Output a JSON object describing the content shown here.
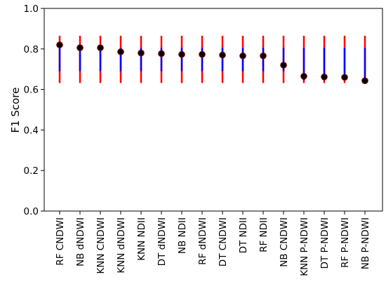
{
  "chart_data": {
    "type": "scatter",
    "title": "",
    "xlabel": "",
    "ylabel": "F1 Score",
    "ylim": [
      0.0,
      1.0
    ],
    "yticks": [
      0.0,
      0.2,
      0.4,
      0.6,
      0.8,
      1.0
    ],
    "ytick_labels": [
      "0.0",
      "0.2",
      "0.4",
      "0.6",
      "0.8",
      "1.0"
    ],
    "grid": false,
    "categories": [
      "RF CNDWI",
      "NB dNDWI",
      "KNN CNDWI",
      "KNN dNDWI",
      "KNN NDII",
      "DT dNDWI",
      "NB NDII",
      "RF dNDWI",
      "DT CNDWI",
      "DT NDII",
      "RF NDII",
      "NB CNDWI",
      "KNN P-NDWI",
      "DT P-NDWI",
      "RF P-NDWI",
      "NB P-NDWI"
    ],
    "values": [
      0.82,
      0.806,
      0.806,
      0.786,
      0.78,
      0.777,
      0.773,
      0.773,
      0.77,
      0.766,
      0.766,
      0.72,
      0.665,
      0.662,
      0.66,
      0.643
    ],
    "outer_range": [
      [
        0.632,
        0.865
      ],
      [
        0.632,
        0.865
      ],
      [
        0.632,
        0.865
      ],
      [
        0.632,
        0.865
      ],
      [
        0.632,
        0.865
      ],
      [
        0.632,
        0.865
      ],
      [
        0.632,
        0.865
      ],
      [
        0.632,
        0.865
      ],
      [
        0.632,
        0.865
      ],
      [
        0.632,
        0.865
      ],
      [
        0.632,
        0.865
      ],
      [
        0.632,
        0.865
      ],
      [
        0.632,
        0.865
      ],
      [
        0.632,
        0.865
      ],
      [
        0.632,
        0.865
      ],
      [
        0.632,
        0.865
      ]
    ],
    "inner_range": [
      [
        0.69,
        0.805
      ],
      [
        0.69,
        0.805
      ],
      [
        0.69,
        0.805
      ],
      [
        0.69,
        0.805
      ],
      [
        0.69,
        0.805
      ],
      [
        0.69,
        0.805
      ],
      [
        0.69,
        0.805
      ],
      [
        0.69,
        0.805
      ],
      [
        0.69,
        0.805
      ],
      [
        0.69,
        0.805
      ],
      [
        0.69,
        0.805
      ],
      [
        0.69,
        0.805
      ],
      [
        0.645,
        0.805
      ],
      [
        0.645,
        0.805
      ],
      [
        0.645,
        0.805
      ],
      [
        0.645,
        0.805
      ]
    ],
    "colors": {
      "outer_range": "#ff0000",
      "inner_range": "#0000ff",
      "marker": "#000000",
      "marker_edge": "#8b0000"
    }
  }
}
